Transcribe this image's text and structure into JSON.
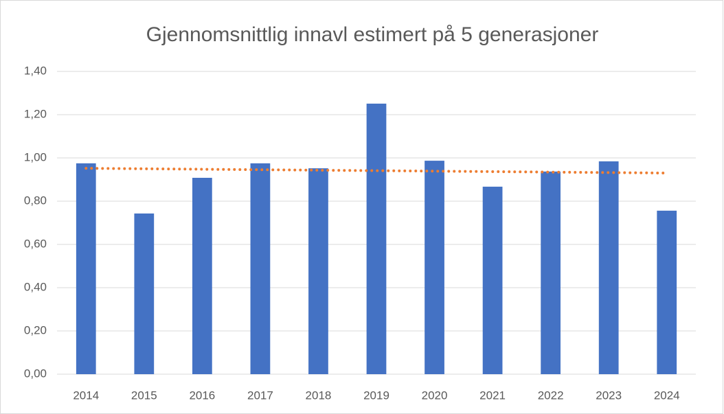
{
  "chart_data": {
    "type": "bar",
    "title": "Gjennomsnittlig innavl estimert på 5 generasjoner",
    "categories": [
      "2014",
      "2015",
      "2016",
      "2017",
      "2018",
      "2019",
      "2020",
      "2021",
      "2022",
      "2023",
      "2024"
    ],
    "values": [
      0.975,
      0.743,
      0.908,
      0.975,
      0.952,
      1.251,
      0.987,
      0.867,
      0.937,
      0.984,
      0.756
    ],
    "color": "#4472c4",
    "trendline": {
      "color": "#ed7d31",
      "values": [
        0.952,
        0.93
      ]
    },
    "ylim": [
      0,
      1.4
    ],
    "yticks": [
      {
        "value": 0,
        "label": "0,00"
      },
      {
        "value": 0.2,
        "label": "0,20"
      },
      {
        "value": 0.4,
        "label": "0,40"
      },
      {
        "value": 0.6,
        "label": "0,60"
      },
      {
        "value": 0.8,
        "label": "0,80"
      },
      {
        "value": 1.0,
        "label": "1,00"
      },
      {
        "value": 1.2,
        "label": "1,20"
      },
      {
        "value": 1.4,
        "label": "1,40"
      }
    ],
    "grid": true
  }
}
